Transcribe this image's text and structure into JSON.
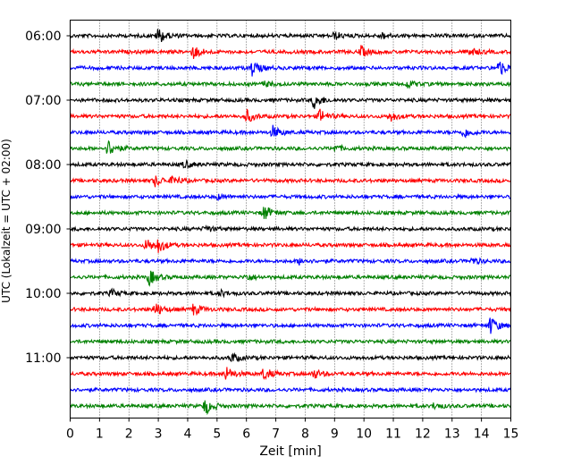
{
  "chart_data": {
    "type": "line",
    "title": "",
    "xlabel": "Zeit  [min]",
    "ylabel": "UTC (Lokalzeit = UTC + 02:00)",
    "xlim": [
      0,
      15
    ],
    "x_ticks": [
      "0",
      "1",
      "2",
      "3",
      "4",
      "5",
      "6",
      "7",
      "8",
      "9",
      "10",
      "11",
      "12",
      "13",
      "14",
      "15"
    ],
    "y_tick_labels": [
      "06:00",
      "07:00",
      "08:00",
      "09:00",
      "10:00",
      "11:00"
    ],
    "grid": "vertical-dotted",
    "trace_colors": [
      "#000000",
      "#ff0000",
      "#0000ff",
      "#008000"
    ],
    "traces": [
      {
        "start": "06:00",
        "events": [
          [
            3.0,
            1.6
          ],
          [
            9.0,
            0.7
          ],
          [
            10.6,
            0.6
          ]
        ]
      },
      {
        "start": "06:15",
        "events": [
          [
            4.2,
            1.3
          ],
          [
            9.9,
            1.0
          ],
          [
            13.6,
            0.9
          ]
        ]
      },
      {
        "start": "06:30",
        "events": [
          [
            6.2,
            1.5
          ],
          [
            14.6,
            1.6
          ]
        ]
      },
      {
        "start": "06:45",
        "events": [
          [
            11.5,
            0.7
          ],
          [
            6.6,
            0.5
          ]
        ]
      },
      {
        "start": "07:00",
        "events": [
          [
            8.3,
            1.6
          ]
        ]
      },
      {
        "start": "07:15",
        "events": [
          [
            6.0,
            1.3
          ],
          [
            8.5,
            1.3
          ],
          [
            10.9,
            0.9
          ]
        ]
      },
      {
        "start": "07:30",
        "events": [
          [
            6.9,
            1.2
          ],
          [
            13.4,
            1.0
          ]
        ]
      },
      {
        "start": "07:45",
        "events": [
          [
            1.3,
            1.7
          ],
          [
            9.0,
            0.6
          ]
        ]
      },
      {
        "start": "08:00",
        "events": [
          [
            3.9,
            0.7
          ]
        ]
      },
      {
        "start": "08:15",
        "events": [
          [
            2.9,
            1.1
          ],
          [
            3.5,
            0.9
          ]
        ]
      },
      {
        "start": "08:30",
        "events": [
          [
            5.0,
            0.5
          ]
        ]
      },
      {
        "start": "08:45",
        "events": [
          [
            6.6,
            1.5
          ]
        ]
      },
      {
        "start": "09:00",
        "events": [
          [
            4.6,
            0.6
          ]
        ]
      },
      {
        "start": "09:15",
        "events": [
          [
            2.6,
            1.3
          ],
          [
            3.0,
            1.3
          ]
        ]
      },
      {
        "start": "09:30",
        "events": [
          [
            7.8,
            0.6
          ],
          [
            13.7,
            0.6
          ]
        ]
      },
      {
        "start": "09:45",
        "events": [
          [
            2.7,
            1.5
          ],
          [
            6.0,
            0.7
          ]
        ]
      },
      {
        "start": "10:00",
        "events": [
          [
            1.4,
            0.7
          ],
          [
            5.1,
            0.6
          ]
        ]
      },
      {
        "start": "10:15",
        "events": [
          [
            2.9,
            1.3
          ],
          [
            4.2,
            1.1
          ]
        ]
      },
      {
        "start": "10:30",
        "events": [
          [
            14.3,
            1.7
          ]
        ]
      },
      {
        "start": "10:45",
        "events": []
      },
      {
        "start": "11:00",
        "events": [
          [
            5.5,
            0.9
          ]
        ]
      },
      {
        "start": "11:15",
        "events": [
          [
            5.3,
            1.4
          ],
          [
            6.6,
            1.2
          ],
          [
            8.3,
            0.9
          ]
        ]
      },
      {
        "start": "11:30",
        "events": []
      },
      {
        "start": "11:45",
        "events": [
          [
            4.6,
            1.6
          ],
          [
            12.4,
            0.6
          ]
        ]
      }
    ]
  }
}
